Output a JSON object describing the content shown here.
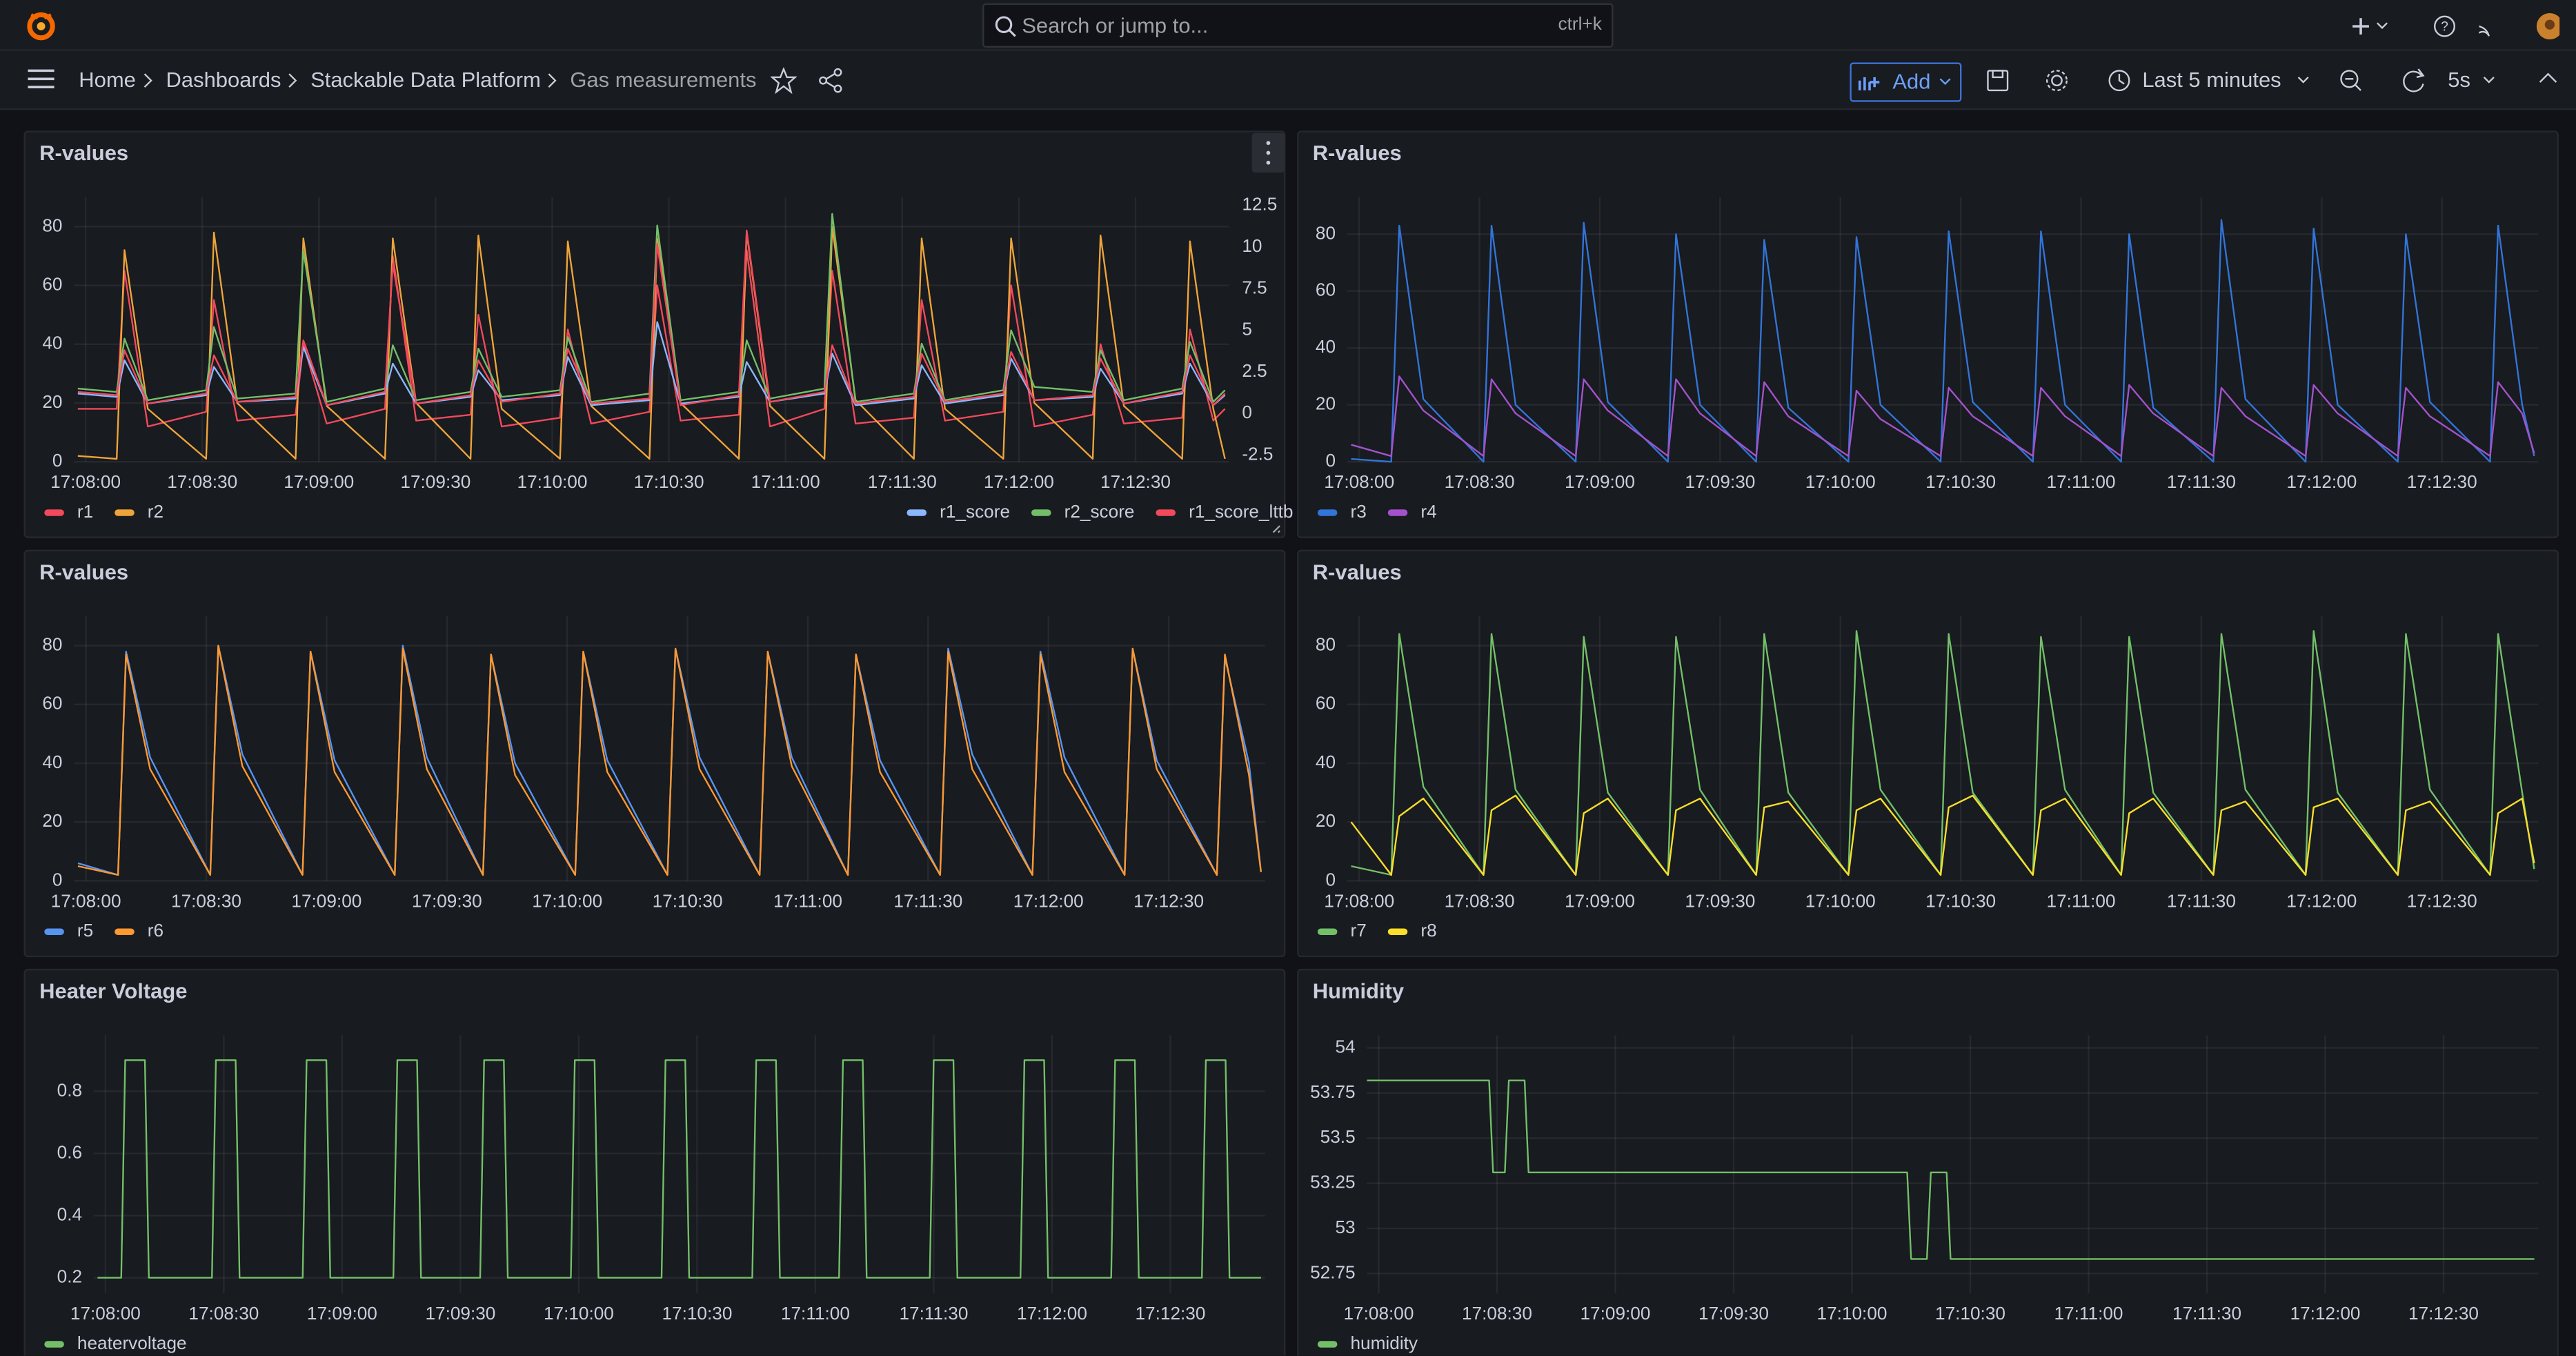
{
  "topbar": {
    "search": "Search or jump to...",
    "shortcut": "ctrl+k"
  },
  "breadcrumbs": [
    "Home",
    "Dashboards",
    "Stackable Data Platform",
    "Gas measurements"
  ],
  "toolbar": {
    "add": "Add",
    "time_range": "Last 5 minutes",
    "refresh": "5s"
  },
  "chart_data": [
    {
      "type": "line",
      "title": "R-values",
      "xlim": [
        "17:07:57",
        "17:12:54"
      ],
      "xticks": [
        "17:08:00",
        "17:08:30",
        "17:09:00",
        "17:09:30",
        "17:10:00",
        "17:10:30",
        "17:11:00",
        "17:11:30",
        "17:12:00",
        "17:12:30"
      ],
      "ylim": [
        0,
        90
      ],
      "yticks": [
        0,
        20,
        40,
        60,
        80
      ],
      "y2lim": [
        -2.9,
        13
      ],
      "y2ticks": [
        -2.5,
        0,
        2.5,
        5,
        7.5,
        10,
        12.5
      ],
      "grid": true,
      "x": [
        "17:07:58",
        "17:08:08",
        "17:08:10",
        "17:08:16",
        "17:08:31",
        "17:08:33",
        "17:08:39",
        "17:08:54",
        "17:08:56",
        "17:09:02",
        "17:09:17",
        "17:09:19",
        "17:09:25",
        "17:09:39",
        "17:09:41",
        "17:09:47",
        "17:10:02",
        "17:10:04",
        "17:10:10",
        "17:10:25",
        "17:10:27",
        "17:10:33",
        "17:10:48",
        "17:10:50",
        "17:10:56",
        "17:11:10",
        "17:11:12",
        "17:11:18",
        "17:11:33",
        "17:11:35",
        "17:11:41",
        "17:11:56",
        "17:11:58",
        "17:12:04",
        "17:12:19",
        "17:12:21",
        "17:12:27",
        "17:12:42",
        "17:12:44",
        "17:12:50",
        "17:12:53"
      ],
      "series": [
        {
          "name": "r1",
          "color": "#f2495c",
          "values": [
            18,
            18,
            65,
            12,
            17,
            55,
            14,
            16,
            40,
            13,
            18,
            70,
            14,
            16,
            50,
            12,
            15,
            45,
            13,
            17,
            60,
            14,
            16,
            72,
            12,
            18,
            65,
            13,
            15,
            55,
            14,
            17,
            60,
            12,
            16,
            40,
            13,
            15,
            45,
            14,
            18
          ]
        },
        {
          "name": "r2",
          "color": "#eea43a",
          "values": [
            2,
            1,
            72,
            18,
            1,
            78,
            20,
            1,
            76,
            19,
            1,
            76,
            20,
            1,
            77,
            18,
            1,
            75,
            19,
            1,
            76,
            20,
            1,
            78,
            19,
            1,
            80,
            21,
            1,
            76,
            18,
            1,
            76,
            20,
            1,
            77,
            19,
            1,
            75,
            18,
            1
          ]
        },
        {
          "name": "r1_score",
          "color": "#8ab8ff",
          "axis": "y2",
          "values": [
            1.2,
            1.0,
            3.2,
            0.6,
            1.1,
            2.8,
            0.7,
            0.9,
            4.0,
            0.5,
            1.2,
            3.0,
            0.6,
            1.0,
            2.6,
            0.8,
            1.1,
            3.4,
            0.5,
            0.8,
            5.5,
            0.6,
            1.0,
            3.1,
            0.7,
            1.2,
            3.6,
            0.5,
            0.9,
            2.9,
            0.6,
            1.1,
            3.3,
            0.8,
            1.0,
            2.7,
            0.6,
            1.2,
            3.0,
            0.5,
            1.1
          ]
        },
        {
          "name": "r2_score",
          "color": "#73bf69",
          "axis": "y2",
          "values": [
            1.5,
            1.3,
            4.5,
            0.8,
            1.4,
            5.2,
            0.9,
            1.2,
            9.8,
            0.7,
            1.5,
            4.1,
            0.8,
            1.3,
            3.9,
            1.0,
            1.4,
            4.6,
            0.7,
            1.2,
            11.3,
            0.8,
            1.3,
            4.4,
            0.9,
            1.5,
            12.0,
            0.7,
            1.2,
            4.2,
            0.8,
            1.4,
            5.0,
            1.6,
            1.3,
            3.8,
            0.8,
            1.5,
            4.3,
            0.7,
            1.4
          ]
        },
        {
          "name": "r1_score_lttb",
          "color": "#f2495c",
          "axis": "y2",
          "values": [
            1.3,
            1.1,
            3.8,
            0.6,
            1.2,
            3.5,
            0.7,
            1.0,
            4.4,
            0.5,
            1.3,
            9.0,
            0.6,
            1.1,
            3.2,
            0.7,
            1.2,
            3.9,
            0.6,
            0.9,
            10.2,
            0.5,
            1.1,
            11.0,
            0.7,
            1.3,
            4.1,
            0.6,
            1.0,
            3.6,
            0.7,
            1.2,
            3.7,
            0.8,
            1.1,
            3.3,
            0.6,
            1.3,
            3.5,
            0.5,
            1.2
          ]
        }
      ]
    },
    {
      "type": "line",
      "title": "R-values",
      "xlim": [
        "17:07:57",
        "17:12:54"
      ],
      "xticks": [
        "17:08:00",
        "17:08:30",
        "17:09:00",
        "17:09:30",
        "17:10:00",
        "17:10:30",
        "17:11:00",
        "17:11:30",
        "17:12:00",
        "17:12:30"
      ],
      "ylim": [
        0,
        93
      ],
      "yticks": [
        0,
        20,
        40,
        60,
        80
      ],
      "grid": true,
      "x": [
        "17:07:58",
        "17:08:08",
        "17:08:10",
        "17:08:16",
        "17:08:31",
        "17:08:33",
        "17:08:39",
        "17:08:54",
        "17:08:56",
        "17:09:02",
        "17:09:17",
        "17:09:19",
        "17:09:25",
        "17:09:39",
        "17:09:41",
        "17:09:47",
        "17:10:02",
        "17:10:04",
        "17:10:10",
        "17:10:25",
        "17:10:27",
        "17:10:33",
        "17:10:48",
        "17:10:50",
        "17:10:56",
        "17:11:10",
        "17:11:12",
        "17:11:18",
        "17:11:33",
        "17:11:35",
        "17:11:41",
        "17:11:56",
        "17:11:58",
        "17:12:04",
        "17:12:19",
        "17:12:21",
        "17:12:27",
        "17:12:42",
        "17:12:44",
        "17:12:50",
        "17:12:53"
      ],
      "series": [
        {
          "name": "r3",
          "color": "#3274d9",
          "values": [
            1,
            0,
            83,
            22,
            0,
            83,
            20,
            0,
            84,
            21,
            0,
            80,
            20,
            0,
            78,
            19,
            0,
            79,
            20,
            0,
            81,
            21,
            0,
            81,
            20,
            0,
            80,
            19,
            0,
            85,
            22,
            0,
            82,
            20,
            0,
            80,
            21,
            0,
            83,
            20,
            2
          ]
        },
        {
          "name": "r4",
          "color": "#a352cc",
          "values": [
            6,
            2,
            30,
            18,
            2,
            29,
            17,
            2,
            29,
            18,
            2,
            29,
            17,
            2,
            28,
            16,
            2,
            25,
            15,
            2,
            26,
            16,
            2,
            26,
            16,
            2,
            27,
            17,
            2,
            26,
            16,
            2,
            27,
            17,
            2,
            26,
            16,
            2,
            28,
            17,
            3
          ]
        }
      ]
    },
    {
      "type": "line",
      "title": "R-values",
      "xlim": [
        "17:07:57",
        "17:12:54"
      ],
      "xticks": [
        "17:08:00",
        "17:08:30",
        "17:09:00",
        "17:09:30",
        "17:10:00",
        "17:10:30",
        "17:11:00",
        "17:11:30",
        "17:12:00",
        "17:12:30"
      ],
      "ylim": [
        0,
        90
      ],
      "yticks": [
        0,
        20,
        40,
        60,
        80
      ],
      "grid": true,
      "x": [
        "17:07:58",
        "17:08:08",
        "17:08:10",
        "17:08:16",
        "17:08:31",
        "17:08:33",
        "17:08:39",
        "17:08:54",
        "17:08:56",
        "17:09:02",
        "17:09:17",
        "17:09:19",
        "17:09:25",
        "17:09:39",
        "17:09:41",
        "17:09:47",
        "17:10:02",
        "17:10:04",
        "17:10:10",
        "17:10:25",
        "17:10:27",
        "17:10:33",
        "17:10:48",
        "17:10:50",
        "17:10:56",
        "17:11:10",
        "17:11:12",
        "17:11:18",
        "17:11:33",
        "17:11:35",
        "17:11:41",
        "17:11:56",
        "17:11:58",
        "17:12:04",
        "17:12:19",
        "17:12:21",
        "17:12:27",
        "17:12:42",
        "17:12:44",
        "17:12:50",
        "17:12:53"
      ],
      "series": [
        {
          "name": "r5",
          "color": "#5794f2",
          "values": [
            6,
            2,
            78,
            42,
            2,
            80,
            43,
            2,
            78,
            41,
            2,
            80,
            42,
            2,
            77,
            40,
            2,
            78,
            41,
            2,
            79,
            42,
            2,
            78,
            42,
            2,
            77,
            41,
            2,
            79,
            43,
            2,
            78,
            42,
            2,
            79,
            41,
            2,
            76,
            40,
            3
          ]
        },
        {
          "name": "r6",
          "color": "#ff9830",
          "values": [
            5,
            2,
            77,
            38,
            2,
            80,
            39,
            2,
            78,
            37,
            2,
            79,
            38,
            2,
            77,
            36,
            2,
            78,
            37,
            2,
            79,
            38,
            2,
            78,
            39,
            2,
            77,
            37,
            2,
            78,
            38,
            2,
            77,
            37,
            2,
            79,
            38,
            2,
            77,
            36,
            3
          ]
        }
      ]
    },
    {
      "type": "line",
      "title": "R-values",
      "xlim": [
        "17:07:57",
        "17:12:54"
      ],
      "xticks": [
        "17:08:00",
        "17:08:30",
        "17:09:00",
        "17:09:30",
        "17:10:00",
        "17:10:30",
        "17:11:00",
        "17:11:30",
        "17:12:00",
        "17:12:30"
      ],
      "ylim": [
        0,
        90
      ],
      "yticks": [
        0,
        20,
        40,
        60,
        80
      ],
      "grid": true,
      "x": [
        "17:07:58",
        "17:08:08",
        "17:08:10",
        "17:08:16",
        "17:08:31",
        "17:08:33",
        "17:08:39",
        "17:08:54",
        "17:08:56",
        "17:09:02",
        "17:09:17",
        "17:09:19",
        "17:09:25",
        "17:09:39",
        "17:09:41",
        "17:09:47",
        "17:10:02",
        "17:10:04",
        "17:10:10",
        "17:10:25",
        "17:10:27",
        "17:10:33",
        "17:10:48",
        "17:10:50",
        "17:10:56",
        "17:11:10",
        "17:11:12",
        "17:11:18",
        "17:11:33",
        "17:11:35",
        "17:11:41",
        "17:11:56",
        "17:11:58",
        "17:12:04",
        "17:12:19",
        "17:12:21",
        "17:12:27",
        "17:12:42",
        "17:12:44",
        "17:12:50",
        "17:12:53"
      ],
      "series": [
        {
          "name": "r7",
          "color": "#73bf69",
          "values": [
            5,
            2,
            84,
            32,
            2,
            84,
            31,
            2,
            83,
            30,
            2,
            83,
            31,
            2,
            84,
            30,
            2,
            85,
            31,
            2,
            84,
            30,
            2,
            83,
            31,
            2,
            83,
            30,
            2,
            84,
            31,
            2,
            85,
            30,
            2,
            84,
            31,
            2,
            84,
            30,
            4
          ]
        },
        {
          "name": "r8",
          "color": "#fade2a",
          "values": [
            20,
            2,
            22,
            28,
            2,
            24,
            29,
            2,
            23,
            28,
            2,
            24,
            28,
            2,
            25,
            27,
            2,
            24,
            28,
            2,
            25,
            29,
            2,
            24,
            28,
            2,
            23,
            28,
            2,
            24,
            27,
            2,
            25,
            28,
            2,
            24,
            27,
            2,
            23,
            28,
            6
          ]
        }
      ]
    },
    {
      "type": "line",
      "title": "Heater Voltage",
      "xlim": [
        "17:07:57",
        "17:12:54"
      ],
      "xticks": [
        "17:08:00",
        "17:08:30",
        "17:09:00",
        "17:09:30",
        "17:10:00",
        "17:10:30",
        "17:11:00",
        "17:11:30",
        "17:12:00",
        "17:12:30"
      ],
      "ylim": [
        0.15,
        0.98
      ],
      "yticks": [
        0.2,
        0.4,
        0.6,
        0.8
      ],
      "grid": true,
      "x": [
        "17:07:58",
        "17:08:04",
        "17:08:05",
        "17:08:10",
        "17:08:11",
        "17:08:27",
        "17:08:28",
        "17:08:33",
        "17:08:34",
        "17:08:50",
        "17:08:51",
        "17:08:56",
        "17:08:57",
        "17:09:13",
        "17:09:14",
        "17:09:19",
        "17:09:20",
        "17:09:35",
        "17:09:36",
        "17:09:41",
        "17:09:42",
        "17:09:58",
        "17:09:59",
        "17:10:04",
        "17:10:05",
        "17:10:21",
        "17:10:22",
        "17:10:27",
        "17:10:28",
        "17:10:44",
        "17:10:45",
        "17:10:50",
        "17:10:51",
        "17:11:06",
        "17:11:07",
        "17:11:12",
        "17:11:13",
        "17:11:29",
        "17:11:30",
        "17:11:35",
        "17:11:36",
        "17:11:52",
        "17:11:53",
        "17:11:58",
        "17:11:59",
        "17:12:15",
        "17:12:16",
        "17:12:21",
        "17:12:22",
        "17:12:38",
        "17:12:39",
        "17:12:44",
        "17:12:45",
        "17:12:53"
      ],
      "series": [
        {
          "name": "heatervoltage",
          "color": "#73bf69",
          "values": [
            0.2,
            0.2,
            0.9,
            0.9,
            0.2,
            0.2,
            0.9,
            0.9,
            0.2,
            0.2,
            0.9,
            0.9,
            0.2,
            0.2,
            0.9,
            0.9,
            0.2,
            0.2,
            0.9,
            0.9,
            0.2,
            0.2,
            0.9,
            0.9,
            0.2,
            0.2,
            0.9,
            0.9,
            0.2,
            0.2,
            0.9,
            0.9,
            0.2,
            0.2,
            0.9,
            0.9,
            0.2,
            0.2,
            0.9,
            0.9,
            0.2,
            0.2,
            0.9,
            0.9,
            0.2,
            0.2,
            0.9,
            0.9,
            0.2,
            0.2,
            0.9,
            0.9,
            0.2,
            0.2
          ]
        }
      ]
    },
    {
      "type": "line",
      "title": "Humidity",
      "xlim": [
        "17:07:57",
        "17:12:54"
      ],
      "xticks": [
        "17:08:00",
        "17:08:30",
        "17:09:00",
        "17:09:30",
        "17:10:00",
        "17:10:30",
        "17:11:00",
        "17:11:30",
        "17:12:00",
        "17:12:30"
      ],
      "ylim": [
        52.64,
        54.07
      ],
      "yticks": [
        52.75,
        53,
        53.25,
        53.5,
        53.75,
        54
      ],
      "grid": true,
      "x": [
        "17:07:57",
        "17:08:28",
        "17:08:29",
        "17:08:32",
        "17:08:33",
        "17:08:37",
        "17:08:38",
        "17:10:14",
        "17:10:15",
        "17:10:19",
        "17:10:20",
        "17:10:24",
        "17:10:25",
        "17:12:53"
      ],
      "series": [
        {
          "name": "humidity",
          "color": "#73bf69",
          "values": [
            53.82,
            53.82,
            53.31,
            53.31,
            53.82,
            53.82,
            53.31,
            53.31,
            52.83,
            52.83,
            53.31,
            53.31,
            52.83,
            52.83
          ]
        }
      ]
    }
  ]
}
